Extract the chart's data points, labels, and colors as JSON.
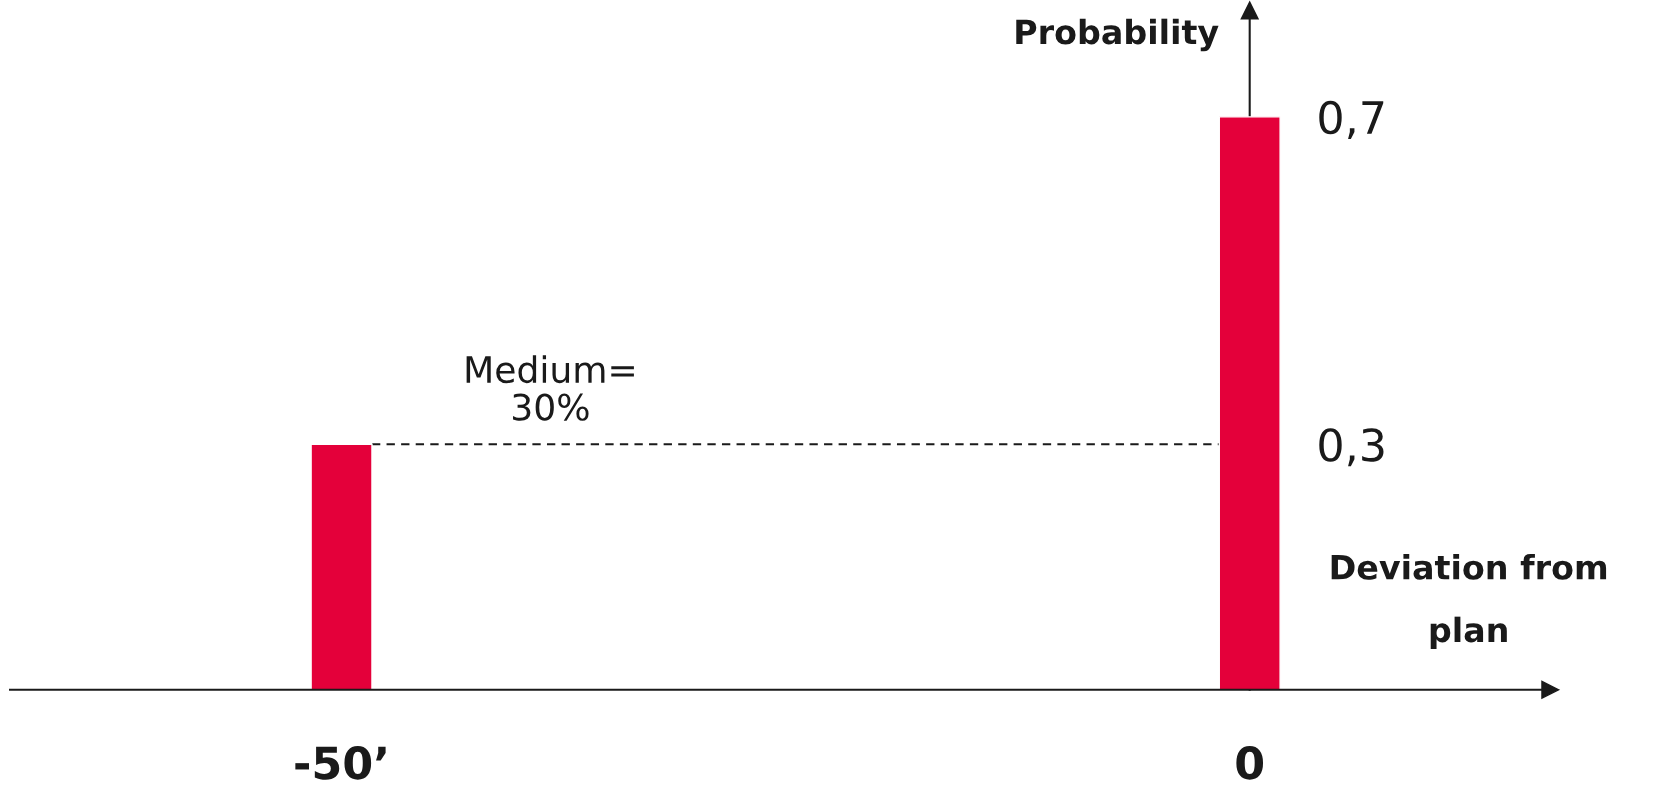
{
  "chart_data": {
    "type": "bar",
    "categories": [
      "-50’",
      "0"
    ],
    "values": [
      0.3,
      0.7
    ],
    "color": "#e4003a",
    "ylim": [
      0,
      0.83
    ],
    "yticks": [
      {
        "value": 0.3,
        "label": "0,3"
      },
      {
        "value": 0.7,
        "label": "0,7"
      }
    ],
    "xlabel": "Deviation from\nplan",
    "ylabel": "Probability",
    "ref_lines": [
      {
        "axis": "y",
        "value": 0.3,
        "label": "Medium=\n30%",
        "color": "#1a1a1a",
        "line_style": "dashed"
      }
    ],
    "grid": false,
    "legend": false
  }
}
